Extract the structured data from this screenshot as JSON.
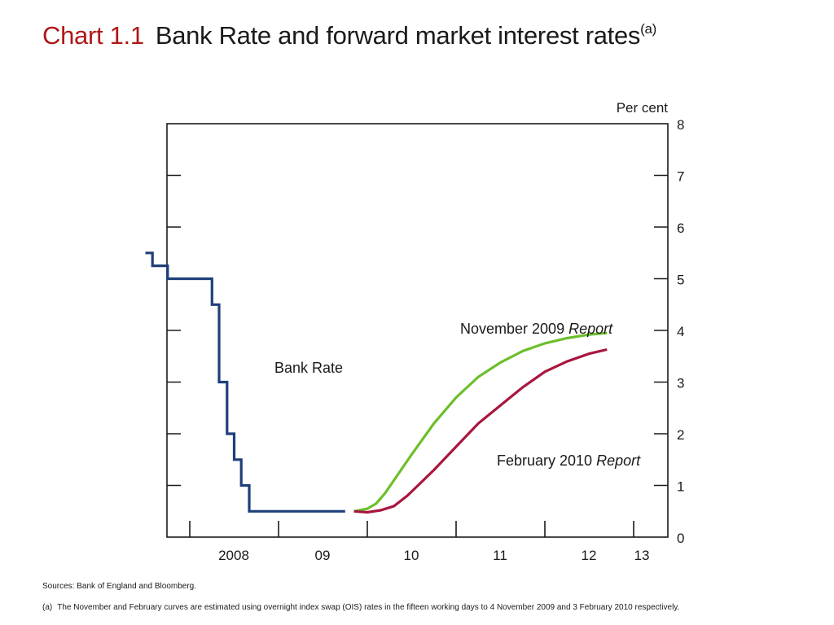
{
  "title": {
    "chart_number": "Chart 1.1",
    "text": "Bank Rate and forward market interest rates",
    "superscript": "(a)"
  },
  "colors": {
    "bank_rate": "#1f3f7a",
    "nov_2009": "#6cbf2c",
    "feb_2010": "#a8163e",
    "axis": "#1a1a1a"
  },
  "chart_data": {
    "type": "line",
    "ylabel": "Per cent",
    "ylim": [
      0,
      8
    ],
    "yticks": [
      0,
      1,
      2,
      3,
      4,
      5,
      6,
      7,
      8
    ],
    "xlim": [
      2007.5,
      2013.4
    ],
    "xticks": [
      {
        "x": 2008,
        "label": "2008"
      },
      {
        "x": 2009,
        "label": "09"
      },
      {
        "x": 2010,
        "label": "10"
      },
      {
        "x": 2011,
        "label": "11"
      },
      {
        "x": 2012,
        "label": "12"
      },
      {
        "x": 2013,
        "label": "13"
      }
    ],
    "series": [
      {
        "key": "bank_rate",
        "name": "Bank Rate",
        "step": true,
        "points": [
          [
            2007.5,
            5.5
          ],
          [
            2007.58,
            5.25
          ],
          [
            2007.75,
            5.0
          ],
          [
            2008.25,
            4.5
          ],
          [
            2008.33,
            3.0
          ],
          [
            2008.42,
            2.0
          ],
          [
            2008.5,
            1.5
          ],
          [
            2008.58,
            1.0
          ],
          [
            2008.67,
            0.5
          ],
          [
            2009.75,
            0.5
          ]
        ]
      },
      {
        "key": "nov_2009",
        "name": "November 2009",
        "name_suffix": "Report",
        "step": false,
        "points": [
          [
            2009.85,
            0.5
          ],
          [
            2010.0,
            0.55
          ],
          [
            2010.1,
            0.65
          ],
          [
            2010.2,
            0.85
          ],
          [
            2010.3,
            1.1
          ],
          [
            2010.5,
            1.6
          ],
          [
            2010.75,
            2.2
          ],
          [
            2011.0,
            2.7
          ],
          [
            2011.25,
            3.1
          ],
          [
            2011.5,
            3.38
          ],
          [
            2011.75,
            3.6
          ],
          [
            2012.0,
            3.75
          ],
          [
            2012.25,
            3.85
          ],
          [
            2012.5,
            3.92
          ],
          [
            2012.7,
            3.95
          ]
        ]
      },
      {
        "key": "feb_2010",
        "name": "February 2010",
        "name_suffix": "Report",
        "step": false,
        "points": [
          [
            2009.85,
            0.5
          ],
          [
            2010.0,
            0.48
          ],
          [
            2010.15,
            0.52
          ],
          [
            2010.3,
            0.6
          ],
          [
            2010.45,
            0.8
          ],
          [
            2010.75,
            1.3
          ],
          [
            2011.0,
            1.75
          ],
          [
            2011.25,
            2.2
          ],
          [
            2011.5,
            2.55
          ],
          [
            2011.75,
            2.9
          ],
          [
            2012.0,
            3.2
          ],
          [
            2012.25,
            3.4
          ],
          [
            2012.5,
            3.55
          ],
          [
            2012.7,
            3.63
          ]
        ]
      }
    ]
  },
  "sources": "Sources:  Bank of England and Bloomberg.",
  "footnote": {
    "label": "(a)",
    "text": "The November and February curves are estimated using overnight index swap (OIS) rates in the fifteen working days to 4 November 2009 and 3 February 2010 respectively."
  }
}
